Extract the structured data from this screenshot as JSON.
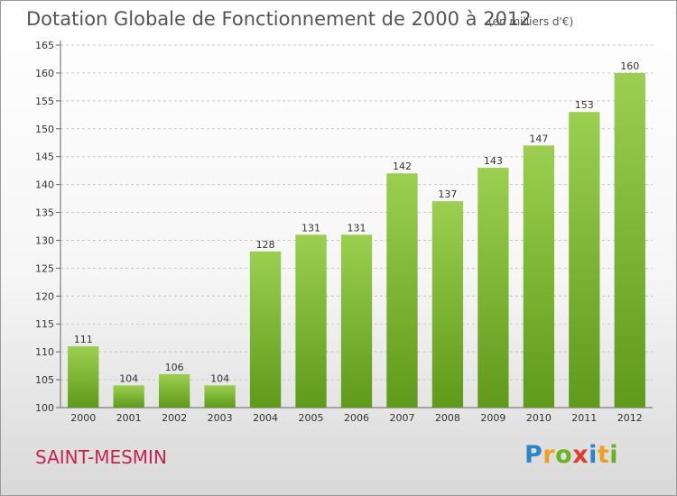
{
  "title": "Dotation Globale de Fonctionnement de 2000 à 2012",
  "unit": "(en milliers d'€)",
  "commune": "SAINT-MESMIN",
  "logo": [
    "P",
    "r",
    "o",
    "x",
    "i",
    "t",
    "i"
  ],
  "chart_data": {
    "type": "bar",
    "title": "Dotation Globale de Fonctionnement de 2000 à 2012",
    "subtitle": "(en milliers d'€)",
    "xlabel": "",
    "ylabel": "",
    "categories": [
      "2000",
      "2001",
      "2002",
      "2003",
      "2004",
      "2005",
      "2006",
      "2007",
      "2008",
      "2009",
      "2010",
      "2011",
      "2012"
    ],
    "values": [
      111,
      104,
      106,
      104,
      128,
      131,
      131,
      142,
      137,
      143,
      147,
      153,
      160
    ],
    "ylim": [
      100,
      165
    ],
    "yticks": [
      100,
      105,
      110,
      115,
      120,
      125,
      130,
      135,
      140,
      145,
      150,
      155,
      160,
      165
    ],
    "grid": true,
    "bar_color_top": "#9ccf4f",
    "bar_color_bottom": "#5f9a1a"
  }
}
